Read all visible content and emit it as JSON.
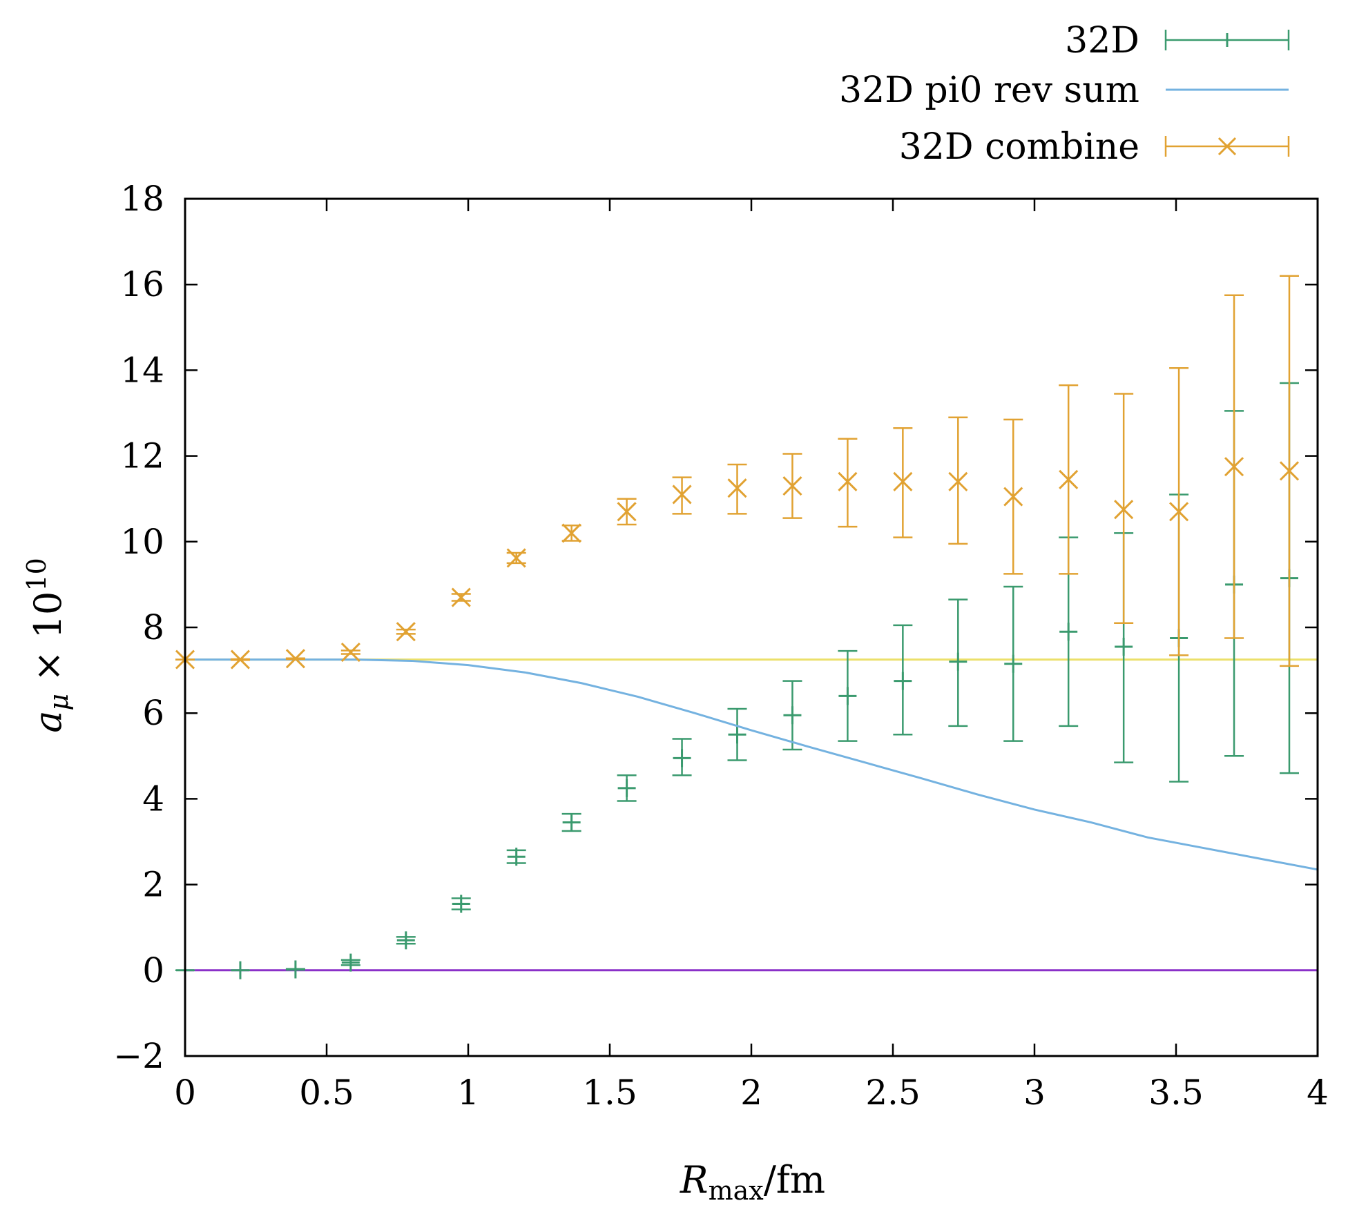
{
  "chart_data": {
    "type": "scatter",
    "title": "",
    "xlabel": "R_max/fm",
    "xlabel_main": "R",
    "xlabel_sub": "max",
    "xlabel_rest": "/fm",
    "ylabel_main": "a",
    "ylabel_sub": "μ",
    "ylabel_times": " × 10",
    "ylabel_sup": "10",
    "xlim": [
      0,
      4
    ],
    "ylim": [
      -2,
      18
    ],
    "xticks": [
      0,
      0.5,
      1,
      1.5,
      2,
      2.5,
      3,
      3.5,
      4
    ],
    "xtick_labels": [
      "0",
      "0.5",
      "1",
      "1.5",
      "2",
      "2.5",
      "3",
      "3.5",
      "4"
    ],
    "yticks": [
      -2,
      0,
      2,
      4,
      6,
      8,
      10,
      12,
      14,
      16,
      18
    ],
    "ytick_labels": [
      "−2",
      "0",
      "2",
      "4",
      "6",
      "8",
      "10",
      "12",
      "14",
      "16",
      "18"
    ],
    "legend_position": "top-right, outside plot",
    "series": [
      {
        "name": "32D",
        "kind": "errorbar-plus",
        "color": "#3a9a6e",
        "points": [
          {
            "x": 0.0,
            "y": 0.0,
            "lo": 0.0,
            "hi": 0.0
          },
          {
            "x": 0.195,
            "y": 0.0,
            "lo": 0.0,
            "hi": 0.0
          },
          {
            "x": 0.39,
            "y": 0.02,
            "lo": 0.01,
            "hi": 0.03
          },
          {
            "x": 0.585,
            "y": 0.18,
            "lo": 0.12,
            "hi": 0.24
          },
          {
            "x": 0.78,
            "y": 0.7,
            "lo": 0.62,
            "hi": 0.78
          },
          {
            "x": 0.975,
            "y": 1.55,
            "lo": 1.42,
            "hi": 1.68
          },
          {
            "x": 1.17,
            "y": 2.65,
            "lo": 2.5,
            "hi": 2.8
          },
          {
            "x": 1.365,
            "y": 3.45,
            "lo": 3.25,
            "hi": 3.65
          },
          {
            "x": 1.56,
            "y": 4.25,
            "lo": 3.95,
            "hi": 4.55
          },
          {
            "x": 1.755,
            "y": 4.95,
            "lo": 4.55,
            "hi": 5.4
          },
          {
            "x": 1.95,
            "y": 5.5,
            "lo": 4.9,
            "hi": 6.1
          },
          {
            "x": 2.145,
            "y": 5.95,
            "lo": 5.15,
            "hi": 6.75
          },
          {
            "x": 2.34,
            "y": 6.4,
            "lo": 5.35,
            "hi": 7.45
          },
          {
            "x": 2.535,
            "y": 6.75,
            "lo": 5.5,
            "hi": 8.05
          },
          {
            "x": 2.73,
            "y": 7.2,
            "lo": 5.7,
            "hi": 8.65
          },
          {
            "x": 2.925,
            "y": 7.15,
            "lo": 5.35,
            "hi": 8.95
          },
          {
            "x": 3.12,
            "y": 7.9,
            "lo": 5.7,
            "hi": 10.1
          },
          {
            "x": 3.315,
            "y": 7.55,
            "lo": 4.85,
            "hi": 10.2
          },
          {
            "x": 3.51,
            "y": 7.75,
            "lo": 4.4,
            "hi": 11.1
          },
          {
            "x": 3.705,
            "y": 9.0,
            "lo": 5.0,
            "hi": 13.05
          },
          {
            "x": 3.9,
            "y": 9.15,
            "lo": 4.6,
            "hi": 13.7
          }
        ]
      },
      {
        "name": "32D pi0 rev sum",
        "kind": "line",
        "color": "#74b2e0",
        "points": [
          {
            "x": 0.0,
            "y": 7.25
          },
          {
            "x": 0.6,
            "y": 7.25
          },
          {
            "x": 0.8,
            "y": 7.22
          },
          {
            "x": 1.0,
            "y": 7.12
          },
          {
            "x": 1.2,
            "y": 6.95
          },
          {
            "x": 1.4,
            "y": 6.7
          },
          {
            "x": 1.6,
            "y": 6.38
          },
          {
            "x": 1.8,
            "y": 6.0
          },
          {
            "x": 2.0,
            "y": 5.6
          },
          {
            "x": 2.2,
            "y": 5.22
          },
          {
            "x": 2.4,
            "y": 4.85
          },
          {
            "x": 2.6,
            "y": 4.48
          },
          {
            "x": 2.8,
            "y": 4.1
          },
          {
            "x": 3.0,
            "y": 3.75
          },
          {
            "x": 3.2,
            "y": 3.45
          },
          {
            "x": 3.4,
            "y": 3.1
          },
          {
            "x": 3.6,
            "y": 2.85
          },
          {
            "x": 3.8,
            "y": 2.6
          },
          {
            "x": 4.0,
            "y": 2.35
          }
        ]
      },
      {
        "name": "32D combine",
        "kind": "errorbar-cross",
        "color": "#e1a232",
        "points": [
          {
            "x": 0.0,
            "y": 7.25,
            "lo": 7.25,
            "hi": 7.25
          },
          {
            "x": 0.195,
            "y": 7.25,
            "lo": 7.24,
            "hi": 7.26
          },
          {
            "x": 0.39,
            "y": 7.27,
            "lo": 7.26,
            "hi": 7.28
          },
          {
            "x": 0.585,
            "y": 7.42,
            "lo": 7.38,
            "hi": 7.46
          },
          {
            "x": 0.78,
            "y": 7.9,
            "lo": 7.85,
            "hi": 7.95
          },
          {
            "x": 0.975,
            "y": 8.7,
            "lo": 8.62,
            "hi": 8.78
          },
          {
            "x": 1.17,
            "y": 9.62,
            "lo": 9.5,
            "hi": 9.74
          },
          {
            "x": 1.365,
            "y": 10.2,
            "lo": 10.02,
            "hi": 10.38
          },
          {
            "x": 1.56,
            "y": 10.7,
            "lo": 10.4,
            "hi": 11.0
          },
          {
            "x": 1.755,
            "y": 11.1,
            "lo": 10.65,
            "hi": 11.5
          },
          {
            "x": 1.95,
            "y": 11.25,
            "lo": 10.65,
            "hi": 11.8
          },
          {
            "x": 2.145,
            "y": 11.3,
            "lo": 10.55,
            "hi": 12.05
          },
          {
            "x": 2.34,
            "y": 11.4,
            "lo": 10.35,
            "hi": 12.4
          },
          {
            "x": 2.535,
            "y": 11.4,
            "lo": 10.1,
            "hi": 12.65
          },
          {
            "x": 2.73,
            "y": 11.4,
            "lo": 9.95,
            "hi": 12.9
          },
          {
            "x": 2.925,
            "y": 11.05,
            "lo": 9.25,
            "hi": 12.85
          },
          {
            "x": 3.12,
            "y": 11.45,
            "lo": 9.25,
            "hi": 13.65
          },
          {
            "x": 3.315,
            "y": 10.75,
            "lo": 8.1,
            "hi": 13.45
          },
          {
            "x": 3.51,
            "y": 10.7,
            "lo": 7.35,
            "hi": 14.05
          },
          {
            "x": 3.705,
            "y": 11.75,
            "lo": 7.75,
            "hi": 15.75
          },
          {
            "x": 3.9,
            "y": 11.65,
            "lo": 7.1,
            "hi": 16.2
          }
        ]
      }
    ],
    "reference_lines": [
      {
        "name": "reference-yellow",
        "y": 7.25,
        "color": "#ece06a"
      },
      {
        "name": "reference-zero",
        "y": 0.0,
        "color": "#8a30c8"
      }
    ]
  }
}
